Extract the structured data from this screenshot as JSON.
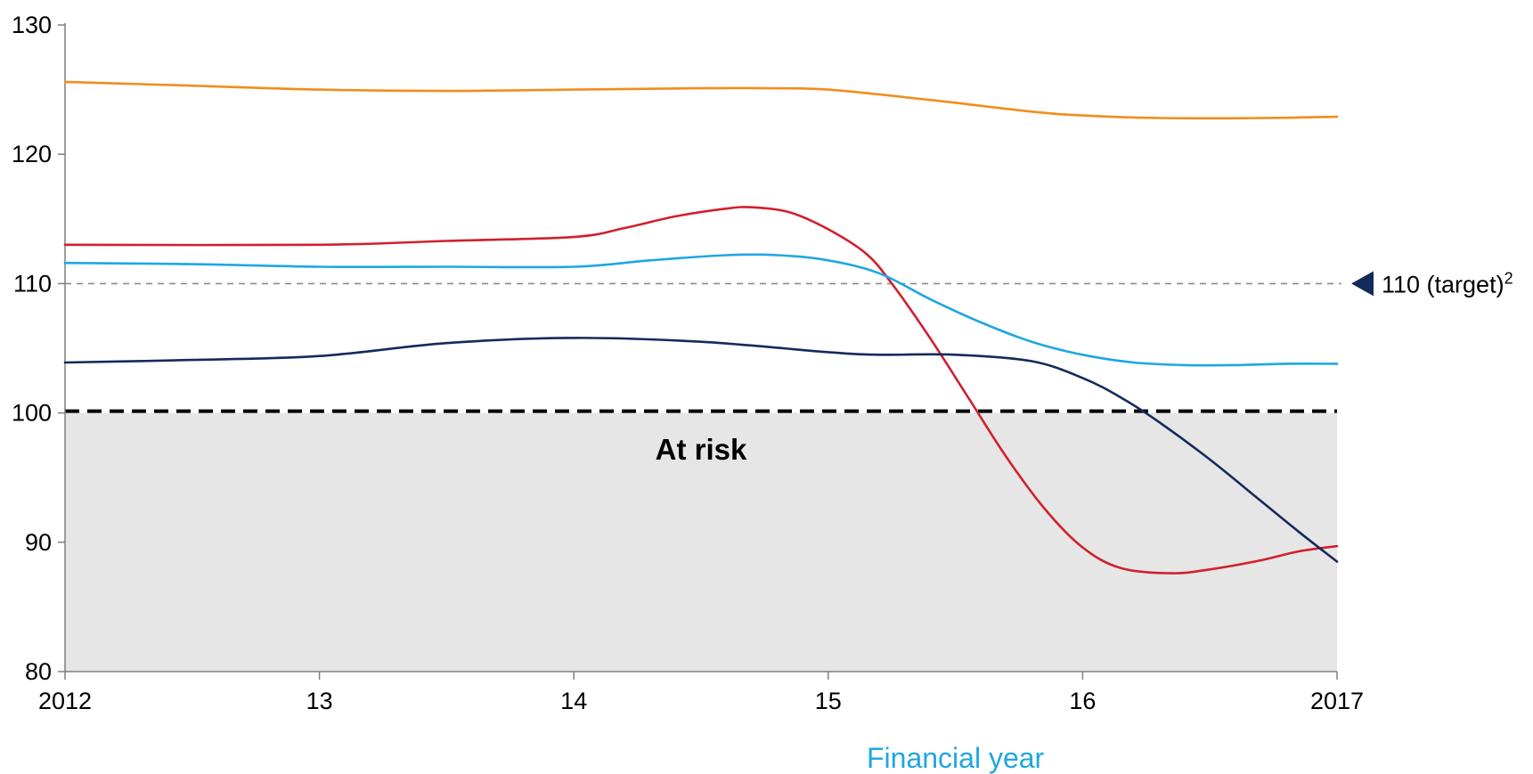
{
  "chart_data": {
    "type": "line",
    "title": "",
    "xlabel": "Financial year",
    "ylabel": "",
    "x_ticks": [
      {
        "x": 2012,
        "label": "2012"
      },
      {
        "x": 2013,
        "label": "13"
      },
      {
        "x": 2014,
        "label": "14"
      },
      {
        "x": 2015,
        "label": "15"
      },
      {
        "x": 2016,
        "label": "16"
      },
      {
        "x": 2017,
        "label": "2017"
      }
    ],
    "y_ticks": [
      80,
      90,
      100,
      110,
      120,
      130
    ],
    "xlim": [
      2012,
      2017
    ],
    "ylim": [
      80,
      130
    ],
    "grid": false,
    "legend": "none",
    "series": [
      {
        "color": "#F28C1E",
        "points": [
          [
            2012,
            125.6
          ],
          [
            2012.5,
            125.3
          ],
          [
            2013,
            125.0
          ],
          [
            2013.5,
            124.9
          ],
          [
            2014,
            125.0
          ],
          [
            2014.5,
            125.1
          ],
          [
            2014.75,
            125.1
          ],
          [
            2015,
            125.0
          ],
          [
            2015.4,
            124.2
          ],
          [
            2015.8,
            123.3
          ],
          [
            2016,
            123.0
          ],
          [
            2016.3,
            122.8
          ],
          [
            2016.7,
            122.8
          ],
          [
            2017,
            122.9
          ]
        ]
      },
      {
        "color": "#D0202E",
        "points": [
          [
            2012,
            113.0
          ],
          [
            2013,
            113.0
          ],
          [
            2013.5,
            113.3
          ],
          [
            2014,
            113.6
          ],
          [
            2014.2,
            114.3
          ],
          [
            2014.4,
            115.2
          ],
          [
            2014.6,
            115.8
          ],
          [
            2014.7,
            115.9
          ],
          [
            2014.85,
            115.5
          ],
          [
            2015,
            114.2
          ],
          [
            2015.15,
            112.3
          ],
          [
            2015.25,
            110.0
          ],
          [
            2015.4,
            105.8
          ],
          [
            2015.55,
            101.2
          ],
          [
            2015.7,
            96.6
          ],
          [
            2015.85,
            92.6
          ],
          [
            2016,
            89.6
          ],
          [
            2016.15,
            88.0
          ],
          [
            2016.35,
            87.6
          ],
          [
            2016.5,
            87.9
          ],
          [
            2016.7,
            88.6
          ],
          [
            2016.85,
            89.3
          ],
          [
            2017,
            89.7
          ]
        ]
      },
      {
        "color": "#1FA7E1",
        "points": [
          [
            2012,
            111.6
          ],
          [
            2012.5,
            111.5
          ],
          [
            2013,
            111.3
          ],
          [
            2013.5,
            111.3
          ],
          [
            2014,
            111.3
          ],
          [
            2014.3,
            111.8
          ],
          [
            2014.6,
            112.2
          ],
          [
            2014.8,
            112.2
          ],
          [
            2015,
            111.8
          ],
          [
            2015.2,
            110.8
          ],
          [
            2015.4,
            108.8
          ],
          [
            2015.6,
            107.0
          ],
          [
            2015.8,
            105.5
          ],
          [
            2016,
            104.5
          ],
          [
            2016.2,
            103.9
          ],
          [
            2016.4,
            103.7
          ],
          [
            2016.6,
            103.7
          ],
          [
            2016.8,
            103.8
          ],
          [
            2017,
            103.8
          ]
        ]
      },
      {
        "color": "#142B5A",
        "points": [
          [
            2012,
            103.9
          ],
          [
            2012.5,
            104.1
          ],
          [
            2013,
            104.4
          ],
          [
            2013.5,
            105.4
          ],
          [
            2014,
            105.8
          ],
          [
            2014.5,
            105.5
          ],
          [
            2015,
            104.7
          ],
          [
            2015.2,
            104.5
          ],
          [
            2015.5,
            104.5
          ],
          [
            2015.8,
            104.0
          ],
          [
            2016,
            102.7
          ],
          [
            2016.15,
            101.2
          ],
          [
            2016.3,
            99.3
          ],
          [
            2016.5,
            96.4
          ],
          [
            2016.7,
            93.2
          ],
          [
            2016.85,
            90.8
          ],
          [
            2017,
            88.5
          ]
        ]
      }
    ],
    "reference_lines": [
      {
        "y": 110,
        "style": "dashed-grey",
        "label": "110 (target)",
        "superscript": "2"
      },
      {
        "y": 100,
        "style": "dashed-black-bold"
      }
    ],
    "shaded_region": {
      "y_from": 80,
      "y_to": 100,
      "label": "At risk",
      "color": "#E6E6E6"
    },
    "colors": {
      "axis": "#7F7F7F",
      "xlabel": "#1FA7E1",
      "target_marker": "#142B5A"
    }
  }
}
